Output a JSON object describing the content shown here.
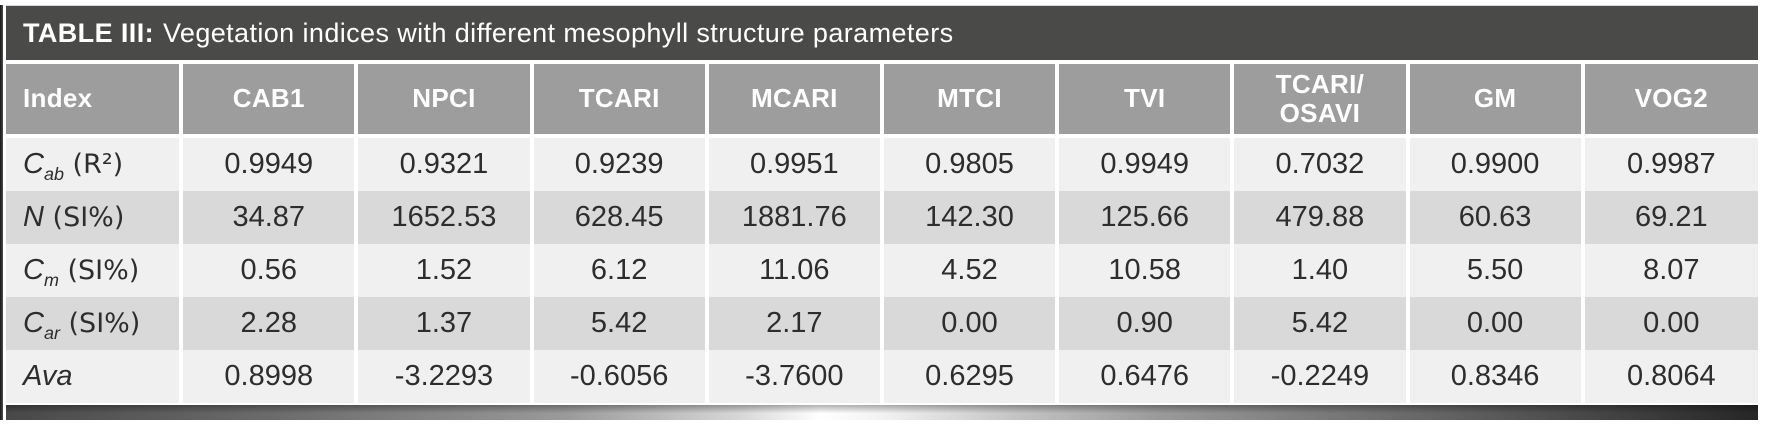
{
  "table": {
    "title_label": "TABLE III:",
    "title_text": "Vegetation indices with different mesophyll structure parameters",
    "columns": [
      "Index",
      "CAB1",
      "NPCI",
      "TCARI",
      "MCARI",
      "MTCI",
      "TVI",
      "TCARI/OSAVI",
      "GM",
      "VOG2"
    ],
    "rows": [
      {
        "label": {
          "base": "C",
          "sub": "ab",
          "unit": " (R²)"
        },
        "label_text": "Cab (R²)",
        "values": [
          "0.9949",
          "0.9321",
          "0.9239",
          "0.9951",
          "0.9805",
          "0.9949",
          "0.7032",
          "0.9900",
          "0.9987"
        ]
      },
      {
        "label": {
          "base": "N",
          "sub": "",
          "unit": " (SI%)"
        },
        "label_text": "N (SI%)",
        "values": [
          "34.87",
          "1652.53",
          "628.45",
          "1881.76",
          "142.30",
          "125.66",
          "479.88",
          "60.63",
          "69.21"
        ]
      },
      {
        "label": {
          "base": "C",
          "sub": "m",
          "unit": " (SI%)"
        },
        "label_text": "Cm (SI%)",
        "values": [
          "0.56",
          "1.52",
          "6.12",
          "11.06",
          "4.52",
          "10.58",
          "1.40",
          "5.50",
          "8.07"
        ]
      },
      {
        "label": {
          "base": "C",
          "sub": "ar",
          "unit": " (SI%)"
        },
        "label_text": "Car (SI%)",
        "values": [
          "2.28",
          "1.37",
          "5.42",
          "2.17",
          "0.00",
          "0.90",
          "5.42",
          "0.00",
          "0.00"
        ]
      },
      {
        "label": {
          "base": "Ava",
          "sub": "",
          "unit": ""
        },
        "label_text": "Ava",
        "values": [
          "0.8998",
          "-3.2293",
          "-0.6056",
          "-3.7600",
          "0.6295",
          "0.6476",
          "-0.2249",
          "0.8346",
          "0.8064"
        ]
      }
    ],
    "colors": {
      "title_bar_bg": "#4a4a48",
      "header_bg": "#9d9d9d",
      "row_light_bg": "#f0f0f0",
      "row_dark_bg": "#d9d9d9",
      "header_text": "#ffffff",
      "body_text": "#2d2d2d"
    }
  }
}
